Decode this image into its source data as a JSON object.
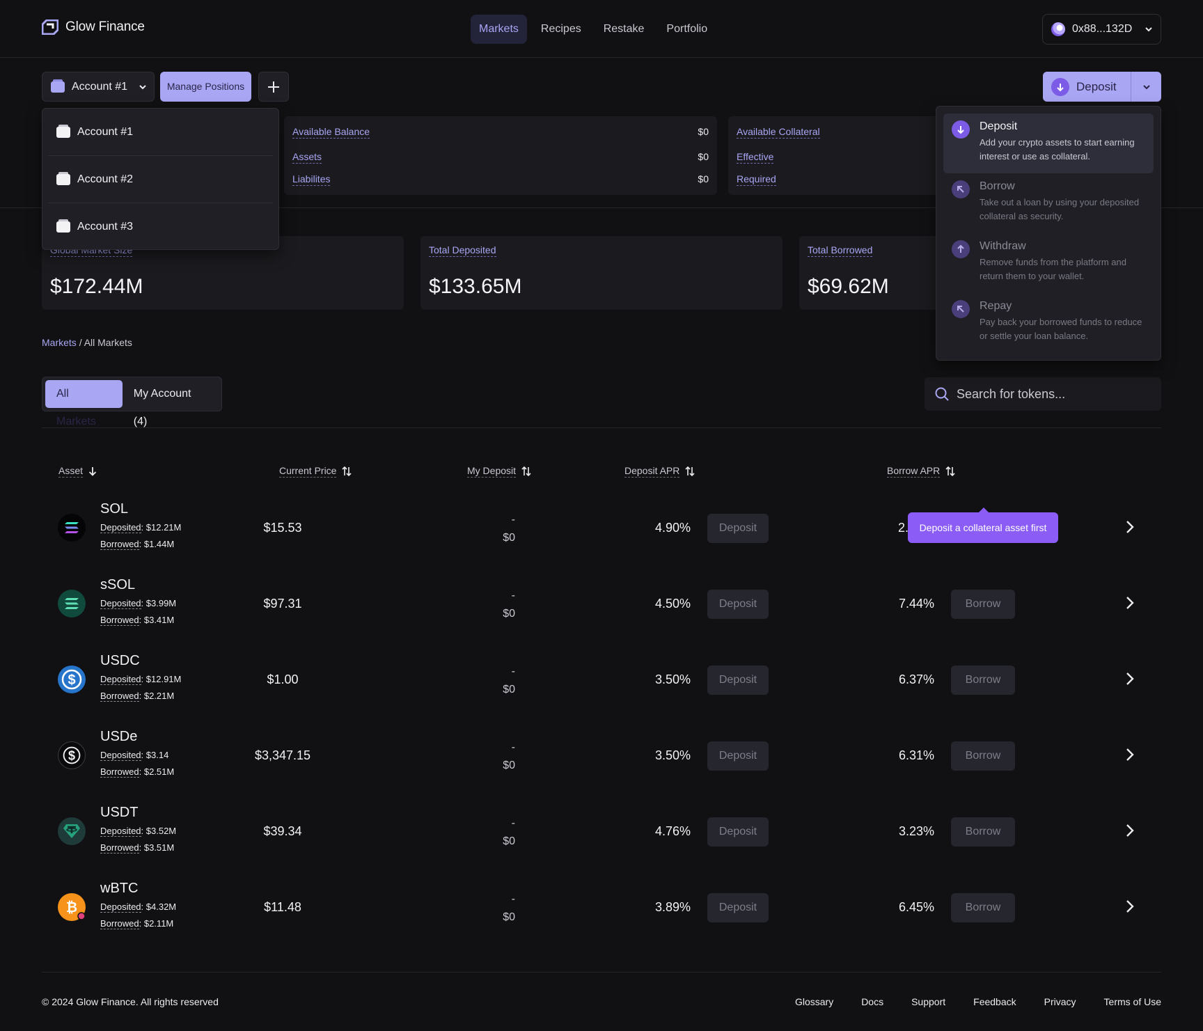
{
  "brand": {
    "name": "Glow Finance"
  },
  "nav": [
    {
      "label": "Markets",
      "active": true
    },
    {
      "label": "Recipes",
      "active": false
    },
    {
      "label": "Restake",
      "active": false
    },
    {
      "label": "Portfolio",
      "active": false
    }
  ],
  "wallet": {
    "address": "0x88...132D"
  },
  "toolbar": {
    "account_label": "Account #1",
    "manage_label": "Manage Positions",
    "deposit_label": "Deposit"
  },
  "account_menu": [
    "Account #1",
    "Account #2",
    "Account #3"
  ],
  "balances": {
    "available_balance": {
      "label": "Available Balance",
      "value": "$0"
    },
    "assets": {
      "label": "Assets",
      "value": "$0"
    },
    "liabilities": {
      "label": "Liabilites",
      "value": "$0"
    },
    "available_collateral": {
      "label": "Available Collateral"
    },
    "effective": {
      "label": "Effective"
    },
    "required": {
      "label": "Required"
    }
  },
  "stats": [
    {
      "label": "Global Market Size",
      "value": "$172.44M"
    },
    {
      "label": "Total Deposited",
      "value": "$133.65M"
    },
    {
      "label": "Total Borrowed",
      "value": "$69.62M"
    }
  ],
  "breadcrumb": {
    "root": "Markets",
    "current": "/ All Markets"
  },
  "tabs": [
    {
      "label": "All Markets",
      "active": true
    },
    {
      "label": "My Account (4)",
      "active": false
    }
  ],
  "search": {
    "placeholder": "Search for tokens..."
  },
  "columns": {
    "asset": "Asset",
    "price": "Current Price",
    "my_deposit": "My Deposit",
    "deposit_apr": "Deposit APR",
    "borrow_apr": "Borrow APR"
  },
  "labels": {
    "deposited": "Deposited",
    "borrowed": "Borrowed",
    "deposit_btn": "Deposit",
    "borrow_btn": "Borrow",
    "dash": "-"
  },
  "rows": [
    {
      "symbol": "SOL",
      "deposited": ": $12.21M",
      "borrowed": ": $1.44M",
      "price": "$15.53",
      "my_deposit": "$0",
      "deposit_apr": "4.90%",
      "borrow_apr": "2."
    },
    {
      "symbol": "sSOL",
      "deposited": ": $3.99M",
      "borrowed": ": $3.41M",
      "price": "$97.31",
      "my_deposit": "$0",
      "deposit_apr": "4.50%",
      "borrow_apr": "7.44%"
    },
    {
      "symbol": "USDC",
      "deposited": ": $12.91M",
      "borrowed": ": $2.21M",
      "price": "$1.00",
      "my_deposit": "$0",
      "deposit_apr": "3.50%",
      "borrow_apr": "6.37%"
    },
    {
      "symbol": "USDe",
      "deposited": ": $3.14",
      "borrowed": ": $2.51M",
      "price": "$3,347.15",
      "my_deposit": "$0",
      "deposit_apr": "3.50%",
      "borrow_apr": "6.31%"
    },
    {
      "symbol": "USDT",
      "deposited": ": $3.52M",
      "borrowed": ": $3.51M",
      "price": "$39.34",
      "my_deposit": "$0",
      "deposit_apr": "4.76%",
      "borrow_apr": "3.23%"
    },
    {
      "symbol": "wBTC",
      "deposited": ": $4.32M",
      "borrowed": ": $2.11M",
      "price": "$11.48",
      "my_deposit": "$0",
      "deposit_apr": "3.89%",
      "borrow_apr": "6.45%"
    }
  ],
  "tooltip": "Deposit a collateral asset first",
  "deposit_menu": [
    {
      "title": "Deposit",
      "desc": "Add your crypto assets to start earning interest or use as collateral.",
      "icon": "arrow-down-icon"
    },
    {
      "title": "Borrow",
      "desc": "Take out a loan by using your deposited collateral as security.",
      "icon": "arrow-up-left-icon"
    },
    {
      "title": "Withdraw",
      "desc": "Remove funds from the platform and return them to your wallet.",
      "icon": "arrow-up-icon"
    },
    {
      "title": "Repay",
      "desc": "Pay back your borrowed funds to reduce or settle your loan balance.",
      "icon": "arrow-up-left-icon"
    }
  ],
  "footer": {
    "copyright": "© 2024 Glow Finance. All rights reserved",
    "links": [
      "Glossary",
      "Docs",
      "Support",
      "Feedback",
      "Privacy",
      "Terms of Use"
    ]
  },
  "colors": {
    "accent": "#a9a6f4",
    "purple": "#8b5cf6",
    "background": "#111113",
    "card": "#1b1b1f"
  }
}
